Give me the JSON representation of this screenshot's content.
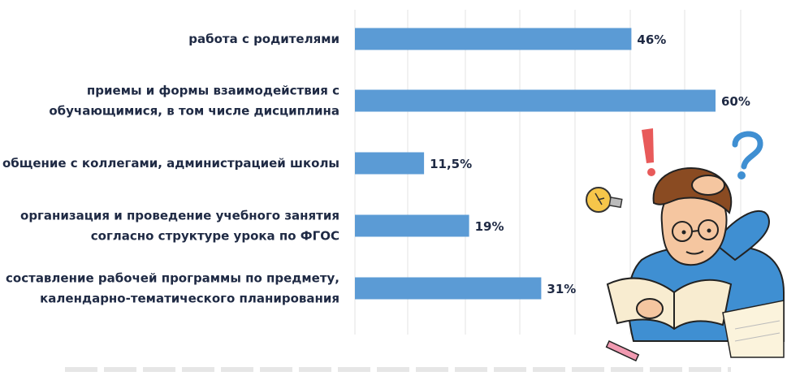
{
  "chart_data": {
    "type": "bar",
    "orientation": "horizontal",
    "categories": [
      [
        "работа с родителями"
      ],
      [
        "приемы и формы взаимодействия с",
        "обучающимися, в том числе дисциплина"
      ],
      [
        "общение с коллегами, администрацией школы"
      ],
      [
        "организация и проведение учебного занятия",
        "согласно структуре урока по ФГОС"
      ],
      [
        "составление рабочей программы по предмету,",
        "календарно-тематического планирования"
      ]
    ],
    "values": [
      46,
      60,
      11.5,
      19,
      31
    ],
    "value_labels": [
      "46%",
      "60%",
      "11,5%",
      "19%",
      "31%"
    ],
    "xlim": [
      0,
      65
    ],
    "grid": true,
    "bar_color": "#5b9bd5"
  }
}
